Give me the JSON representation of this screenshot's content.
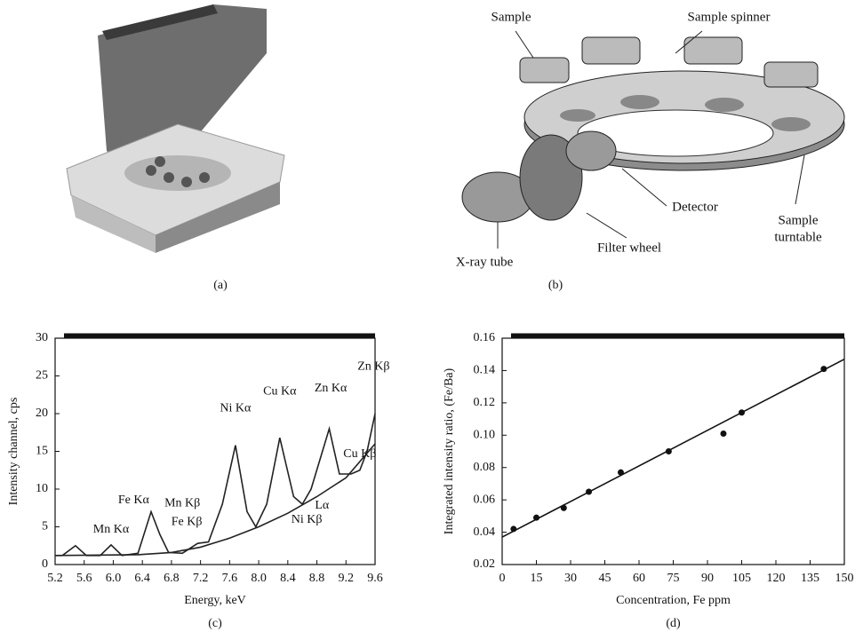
{
  "figure": {
    "panel_a": {
      "caption": "(a)"
    },
    "panel_b": {
      "caption": "(b)",
      "labels": [
        {
          "lines": [
            "Sample"
          ]
        },
        {
          "lines": [
            "Sample spinner"
          ]
        },
        {
          "lines": [
            "Detector"
          ]
        },
        {
          "lines": [
            "Filter wheel"
          ]
        },
        {
          "lines": [
            "X-ray tube"
          ]
        },
        {
          "lines": [
            "Sample",
            "turntable"
          ]
        }
      ]
    }
  },
  "chart_data": [
    {
      "type": "line",
      "caption": "(c)",
      "x_label": "Energy, keV",
      "y_label": "Intensity channel, cps",
      "xlim": [
        5.2,
        9.6
      ],
      "ylim": [
        0,
        30
      ],
      "xticks": [
        5.2,
        5.6,
        {
          "value": 6.0,
          "label": "6.0"
        },
        6.4,
        6.8,
        7.2,
        7.6,
        {
          "value": 8.0,
          "label": "8.0"
        },
        8.4,
        8.8,
        9.2,
        9.6
      ],
      "yticks": [
        0,
        5,
        10,
        15,
        20,
        25,
        30
      ],
      "series": [
        {
          "color": "#222222",
          "x": [
            5.2,
            5.3,
            5.48,
            5.63,
            5.82,
            5.97,
            6.12,
            6.34,
            6.52,
            6.64,
            6.76,
            6.95,
            7.16,
            7.31,
            7.5,
            7.68,
            7.84,
            7.96,
            8.11,
            8.29,
            8.48,
            8.6,
            8.72,
            8.97,
            9.11,
            9.27,
            9.39,
            9.49,
            9.6
          ],
          "values": [
            1.2,
            1.2,
            2.5,
            1.2,
            1.2,
            2.6,
            1.2,
            1.5,
            7,
            4,
            1.6,
            1.5,
            2.8,
            3,
            8,
            15.8,
            7,
            5,
            8,
            16.8,
            9,
            8,
            10,
            18,
            12,
            12,
            12.5,
            15,
            20
          ]
        },
        {
          "color": "#222222",
          "x": [
            5.2,
            6.34,
            6.8,
            7.2,
            7.6,
            8.0,
            8.4,
            8.8,
            9.2,
            9.6
          ],
          "values": [
            1.2,
            1.3,
            1.6,
            2.3,
            3.5,
            5,
            6.8,
            9,
            11.5,
            16
          ]
        }
      ],
      "annotations": [
        {
          "text": "Mn Kα",
          "x": 5.97,
          "y": 4.6
        },
        {
          "text": "Fe Kα",
          "x": 6.28,
          "y": 8.5
        },
        {
          "text": "Mn Kβ",
          "x": 6.95,
          "y": 8.1
        },
        {
          "text": "Fe Kβ",
          "x": 7.01,
          "y": 5.6
        },
        {
          "text": "Ni Kα",
          "x": 7.68,
          "y": 20.7
        },
        {
          "text": "Cu Kα",
          "x": 8.29,
          "y": 22.9
        },
        {
          "text": "Zn Kα",
          "x": 8.99,
          "y": 23.3
        },
        {
          "text": "Lα",
          "x": 8.87,
          "y": 7.8
        },
        {
          "text": "Ni Kβ",
          "x": 8.66,
          "y": 5.9
        },
        {
          "text": "Cu Kβ",
          "x": 9.39,
          "y": 14.6
        },
        {
          "text": "Zn Kβ",
          "x": 9.58,
          "y": 26.2
        }
      ]
    },
    {
      "type": "scatter",
      "caption": "(d)",
      "x_label": "Concentration, Fe ppm",
      "y_label": "Integrated intensity ratio, (Fe/Ba)",
      "xlim": [
        0,
        150
      ],
      "ylim": [
        0.02,
        0.16
      ],
      "xticks": [
        0,
        15,
        30,
        45,
        60,
        75,
        90,
        105,
        120,
        135,
        150
      ],
      "yticks": [
        0.02,
        0.04,
        0.06,
        0.08,
        {
          "value": 0.1,
          "label": "0.10"
        },
        0.12,
        0.14,
        0.16
      ],
      "series": [
        {
          "mode": "markers",
          "color": "#111111",
          "x": [
            5,
            15,
            27,
            38,
            52,
            73,
            97,
            105,
            141
          ],
          "values": [
            0.042,
            0.049,
            0.055,
            0.065,
            0.077,
            0.09,
            0.101,
            0.114,
            0.141
          ]
        },
        {
          "mode": "line",
          "color": "#111111",
          "x": [
            0,
            150
          ],
          "values": [
            0.037,
            0.147
          ]
        }
      ]
    }
  ]
}
